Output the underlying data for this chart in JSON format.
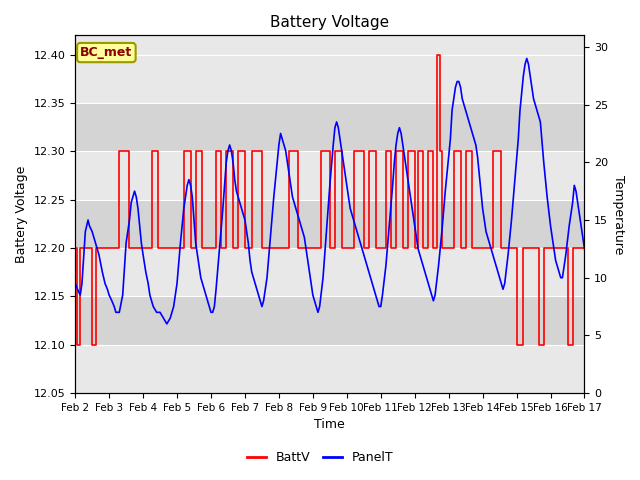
{
  "title": "Battery Voltage",
  "xlabel": "Time",
  "ylabel_left": "Battery Voltage",
  "ylabel_right": "Temperature",
  "ylim_left": [
    12.05,
    12.42
  ],
  "ylim_right": [
    0,
    31.0
  ],
  "yticks_left": [
    12.05,
    12.1,
    12.15,
    12.2,
    12.25,
    12.3,
    12.35,
    12.4
  ],
  "yticks_right": [
    0,
    5,
    10,
    15,
    20,
    25,
    30
  ],
  "xtick_labels": [
    "Feb 2",
    "Feb 3",
    "Feb 4",
    "Feb 5",
    "Feb 6",
    "Feb 7",
    "Feb 8",
    "Feb 9",
    "Feb 10",
    "Feb 11",
    "Feb 12",
    "Feb 13",
    "Feb 14",
    "Feb 15",
    "Feb 16",
    "Feb 17"
  ],
  "background_color": "#ffffff",
  "plot_bg_color": "#e8e8e8",
  "shade_dark_color": "#d0d0d0",
  "grid_color": "#ffffff",
  "annotation_text": "BC_met",
  "annotation_bg": "#ffff99",
  "annotation_border": "#999900",
  "legend_labels": [
    "BattV",
    "PanelT"
  ],
  "battv_color": "#ff0000",
  "panelt_color": "#0000ff",
  "battv_data": [
    [
      0.0,
      12.2
    ],
    [
      0.05,
      12.2
    ],
    [
      0.05,
      12.1
    ],
    [
      0.15,
      12.1
    ],
    [
      0.15,
      12.2
    ],
    [
      0.5,
      12.2
    ],
    [
      0.5,
      12.1
    ],
    [
      0.6,
      12.1
    ],
    [
      0.6,
      12.2
    ],
    [
      1.0,
      12.2
    ],
    [
      1.3,
      12.2
    ],
    [
      1.3,
      12.3
    ],
    [
      1.6,
      12.3
    ],
    [
      1.6,
      12.2
    ],
    [
      2.0,
      12.2
    ],
    [
      2.25,
      12.2
    ],
    [
      2.25,
      12.3
    ],
    [
      2.45,
      12.3
    ],
    [
      2.45,
      12.2
    ],
    [
      3.0,
      12.2
    ],
    [
      3.2,
      12.2
    ],
    [
      3.2,
      12.3
    ],
    [
      3.4,
      12.3
    ],
    [
      3.4,
      12.2
    ],
    [
      3.55,
      12.2
    ],
    [
      3.55,
      12.3
    ],
    [
      3.75,
      12.3
    ],
    [
      3.75,
      12.2
    ],
    [
      4.0,
      12.2
    ],
    [
      4.15,
      12.2
    ],
    [
      4.15,
      12.3
    ],
    [
      4.3,
      12.3
    ],
    [
      4.3,
      12.2
    ],
    [
      4.45,
      12.2
    ],
    [
      4.45,
      12.3
    ],
    [
      4.65,
      12.3
    ],
    [
      4.65,
      12.2
    ],
    [
      4.8,
      12.2
    ],
    [
      4.8,
      12.3
    ],
    [
      5.0,
      12.3
    ],
    [
      5.0,
      12.2
    ],
    [
      5.0,
      12.2
    ],
    [
      5.2,
      12.2
    ],
    [
      5.2,
      12.3
    ],
    [
      5.5,
      12.3
    ],
    [
      5.5,
      12.2
    ],
    [
      6.0,
      12.2
    ],
    [
      6.3,
      12.2
    ],
    [
      6.3,
      12.3
    ],
    [
      6.55,
      12.3
    ],
    [
      6.55,
      12.2
    ],
    [
      7.0,
      12.2
    ],
    [
      7.25,
      12.2
    ],
    [
      7.25,
      12.3
    ],
    [
      7.5,
      12.3
    ],
    [
      7.5,
      12.2
    ],
    [
      7.65,
      12.2
    ],
    [
      7.65,
      12.3
    ],
    [
      7.85,
      12.3
    ],
    [
      7.85,
      12.2
    ],
    [
      8.0,
      12.2
    ],
    [
      8.2,
      12.2
    ],
    [
      8.2,
      12.3
    ],
    [
      8.5,
      12.3
    ],
    [
      8.5,
      12.2
    ],
    [
      8.65,
      12.2
    ],
    [
      8.65,
      12.3
    ],
    [
      8.85,
      12.3
    ],
    [
      8.85,
      12.2
    ],
    [
      9.0,
      12.2
    ],
    [
      9.15,
      12.2
    ],
    [
      9.15,
      12.3
    ],
    [
      9.3,
      12.3
    ],
    [
      9.3,
      12.2
    ],
    [
      9.45,
      12.2
    ],
    [
      9.45,
      12.3
    ],
    [
      9.65,
      12.3
    ],
    [
      9.65,
      12.2
    ],
    [
      9.8,
      12.2
    ],
    [
      9.8,
      12.3
    ],
    [
      10.0,
      12.3
    ],
    [
      10.0,
      12.2
    ],
    [
      10.0,
      12.2
    ],
    [
      10.1,
      12.2
    ],
    [
      10.1,
      12.3
    ],
    [
      10.25,
      12.3
    ],
    [
      10.25,
      12.2
    ],
    [
      10.4,
      12.2
    ],
    [
      10.4,
      12.3
    ],
    [
      10.55,
      12.3
    ],
    [
      10.55,
      12.2
    ],
    [
      10.65,
      12.2
    ],
    [
      10.65,
      12.4
    ],
    [
      10.75,
      12.4
    ],
    [
      10.75,
      12.3
    ],
    [
      10.8,
      12.3
    ],
    [
      10.8,
      12.2
    ],
    [
      11.0,
      12.2
    ],
    [
      11.15,
      12.2
    ],
    [
      11.15,
      12.3
    ],
    [
      11.35,
      12.3
    ],
    [
      11.35,
      12.2
    ],
    [
      11.5,
      12.2
    ],
    [
      11.5,
      12.3
    ],
    [
      11.7,
      12.3
    ],
    [
      11.7,
      12.2
    ],
    [
      12.0,
      12.2
    ],
    [
      12.3,
      12.2
    ],
    [
      12.3,
      12.3
    ],
    [
      12.55,
      12.3
    ],
    [
      12.55,
      12.2
    ],
    [
      13.0,
      12.2
    ],
    [
      13.0,
      12.1
    ],
    [
      13.2,
      12.1
    ],
    [
      13.2,
      12.2
    ],
    [
      13.65,
      12.2
    ],
    [
      13.65,
      12.1
    ],
    [
      13.8,
      12.1
    ],
    [
      13.8,
      12.2
    ],
    [
      14.0,
      12.2
    ],
    [
      14.5,
      12.2
    ],
    [
      14.5,
      12.1
    ],
    [
      14.65,
      12.1
    ],
    [
      14.65,
      12.2
    ],
    [
      15.0,
      12.2
    ]
  ],
  "panelt_data": [
    [
      0.0,
      9.5
    ],
    [
      0.07,
      9.0
    ],
    [
      0.15,
      8.5
    ],
    [
      0.2,
      9.5
    ],
    [
      0.3,
      14.0
    ],
    [
      0.38,
      15.0
    ],
    [
      0.42,
      14.5
    ],
    [
      0.5,
      14.0
    ],
    [
      0.6,
      13.0
    ],
    [
      0.7,
      12.0
    ],
    [
      0.8,
      10.5
    ],
    [
      0.88,
      9.5
    ],
    [
      0.95,
      9.0
    ],
    [
      1.0,
      8.5
    ],
    [
      1.08,
      8.0
    ],
    [
      1.15,
      7.5
    ],
    [
      1.2,
      7.0
    ],
    [
      1.3,
      7.0
    ],
    [
      1.4,
      8.5
    ],
    [
      1.5,
      13.0
    ],
    [
      1.6,
      15.0
    ],
    [
      1.65,
      16.5
    ],
    [
      1.7,
      17.0
    ],
    [
      1.75,
      17.5
    ],
    [
      1.8,
      17.0
    ],
    [
      1.85,
      16.0
    ],
    [
      1.9,
      14.5
    ],
    [
      1.95,
      13.0
    ],
    [
      2.0,
      12.0
    ],
    [
      2.08,
      10.5
    ],
    [
      2.15,
      9.5
    ],
    [
      2.2,
      8.5
    ],
    [
      2.3,
      7.5
    ],
    [
      2.4,
      7.0
    ],
    [
      2.5,
      7.0
    ],
    [
      2.6,
      6.5
    ],
    [
      2.7,
      6.0
    ],
    [
      2.8,
      6.5
    ],
    [
      2.9,
      7.5
    ],
    [
      3.0,
      9.5
    ],
    [
      3.1,
      13.0
    ],
    [
      3.2,
      16.0
    ],
    [
      3.3,
      18.0
    ],
    [
      3.35,
      18.5
    ],
    [
      3.4,
      18.0
    ],
    [
      3.45,
      17.0
    ],
    [
      3.5,
      15.0
    ],
    [
      3.55,
      13.0
    ],
    [
      3.6,
      12.0
    ],
    [
      3.7,
      10.0
    ],
    [
      3.75,
      9.5
    ],
    [
      3.8,
      9.0
    ],
    [
      3.85,
      8.5
    ],
    [
      3.9,
      8.0
    ],
    [
      3.95,
      7.5
    ],
    [
      4.0,
      7.0
    ],
    [
      4.05,
      7.0
    ],
    [
      4.1,
      7.5
    ],
    [
      4.15,
      9.0
    ],
    [
      4.25,
      12.5
    ],
    [
      4.35,
      16.0
    ],
    [
      4.45,
      20.0
    ],
    [
      4.5,
      21.0
    ],
    [
      4.55,
      21.5
    ],
    [
      4.6,
      21.0
    ],
    [
      4.65,
      20.0
    ],
    [
      4.7,
      18.5
    ],
    [
      4.75,
      17.5
    ],
    [
      4.8,
      17.0
    ],
    [
      4.85,
      16.5
    ],
    [
      4.9,
      16.0
    ],
    [
      4.95,
      15.5
    ],
    [
      5.0,
      15.0
    ],
    [
      5.05,
      14.0
    ],
    [
      5.1,
      13.0
    ],
    [
      5.15,
      11.5
    ],
    [
      5.2,
      10.5
    ],
    [
      5.25,
      10.0
    ],
    [
      5.3,
      9.5
    ],
    [
      5.35,
      9.0
    ],
    [
      5.4,
      8.5
    ],
    [
      5.45,
      8.0
    ],
    [
      5.5,
      7.5
    ],
    [
      5.55,
      8.0
    ],
    [
      5.65,
      10.0
    ],
    [
      5.75,
      13.5
    ],
    [
      5.85,
      17.0
    ],
    [
      5.95,
      20.0
    ],
    [
      6.0,
      21.5
    ],
    [
      6.05,
      22.5
    ],
    [
      6.1,
      22.0
    ],
    [
      6.15,
      21.5
    ],
    [
      6.2,
      21.0
    ],
    [
      6.25,
      20.0
    ],
    [
      6.3,
      19.0
    ],
    [
      6.35,
      18.0
    ],
    [
      6.4,
      17.0
    ],
    [
      6.45,
      16.5
    ],
    [
      6.5,
      16.0
    ],
    [
      6.55,
      15.5
    ],
    [
      6.6,
      15.0
    ],
    [
      6.65,
      14.5
    ],
    [
      6.7,
      14.0
    ],
    [
      6.75,
      13.5
    ],
    [
      6.8,
      12.5
    ],
    [
      6.85,
      11.5
    ],
    [
      6.9,
      10.5
    ],
    [
      6.95,
      9.5
    ],
    [
      7.0,
      8.5
    ],
    [
      7.05,
      8.0
    ],
    [
      7.1,
      7.5
    ],
    [
      7.15,
      7.0
    ],
    [
      7.2,
      7.5
    ],
    [
      7.3,
      10.0
    ],
    [
      7.4,
      14.0
    ],
    [
      7.5,
      18.0
    ],
    [
      7.6,
      21.5
    ],
    [
      7.65,
      23.0
    ],
    [
      7.7,
      23.5
    ],
    [
      7.75,
      23.0
    ],
    [
      7.8,
      22.0
    ],
    [
      7.85,
      21.0
    ],
    [
      7.9,
      20.0
    ],
    [
      7.95,
      19.0
    ],
    [
      8.0,
      18.0
    ],
    [
      8.05,
      17.0
    ],
    [
      8.1,
      16.0
    ],
    [
      8.15,
      15.5
    ],
    [
      8.2,
      15.0
    ],
    [
      8.25,
      14.5
    ],
    [
      8.3,
      14.0
    ],
    [
      8.35,
      13.5
    ],
    [
      8.4,
      13.0
    ],
    [
      8.45,
      12.5
    ],
    [
      8.5,
      12.0
    ],
    [
      8.55,
      11.5
    ],
    [
      8.6,
      11.0
    ],
    [
      8.65,
      10.5
    ],
    [
      8.7,
      10.0
    ],
    [
      8.75,
      9.5
    ],
    [
      8.8,
      9.0
    ],
    [
      8.85,
      8.5
    ],
    [
      8.9,
      8.0
    ],
    [
      8.95,
      7.5
    ],
    [
      9.0,
      7.5
    ],
    [
      9.05,
      8.5
    ],
    [
      9.15,
      11.0
    ],
    [
      9.25,
      14.5
    ],
    [
      9.35,
      18.0
    ],
    [
      9.4,
      20.0
    ],
    [
      9.45,
      21.5
    ],
    [
      9.5,
      22.5
    ],
    [
      9.55,
      23.0
    ],
    [
      9.6,
      22.5
    ],
    [
      9.65,
      21.5
    ],
    [
      9.7,
      20.5
    ],
    [
      9.75,
      19.5
    ],
    [
      9.8,
      18.5
    ],
    [
      9.85,
      17.5
    ],
    [
      9.9,
      16.5
    ],
    [
      9.95,
      15.5
    ],
    [
      10.0,
      14.5
    ],
    [
      10.05,
      13.5
    ],
    [
      10.1,
      12.5
    ],
    [
      10.15,
      12.0
    ],
    [
      10.2,
      11.5
    ],
    [
      10.25,
      11.0
    ],
    [
      10.3,
      10.5
    ],
    [
      10.35,
      10.0
    ],
    [
      10.4,
      9.5
    ],
    [
      10.45,
      9.0
    ],
    [
      10.5,
      8.5
    ],
    [
      10.55,
      8.0
    ],
    [
      10.6,
      8.5
    ],
    [
      10.7,
      11.0
    ],
    [
      10.8,
      14.0
    ],
    [
      10.9,
      17.5
    ],
    [
      11.0,
      20.5
    ],
    [
      11.05,
      22.0
    ],
    [
      11.1,
      24.5
    ],
    [
      11.15,
      25.5
    ],
    [
      11.2,
      26.5
    ],
    [
      11.25,
      27.0
    ],
    [
      11.3,
      27.0
    ],
    [
      11.35,
      26.5
    ],
    [
      11.4,
      25.5
    ],
    [
      11.45,
      25.0
    ],
    [
      11.5,
      24.5
    ],
    [
      11.55,
      24.0
    ],
    [
      11.6,
      23.5
    ],
    [
      11.65,
      23.0
    ],
    [
      11.7,
      22.5
    ],
    [
      11.75,
      22.0
    ],
    [
      11.8,
      21.5
    ],
    [
      11.85,
      20.5
    ],
    [
      11.9,
      19.0
    ],
    [
      11.95,
      17.5
    ],
    [
      12.0,
      16.0
    ],
    [
      12.05,
      15.0
    ],
    [
      12.1,
      14.0
    ],
    [
      12.15,
      13.5
    ],
    [
      12.2,
      13.0
    ],
    [
      12.25,
      12.5
    ],
    [
      12.3,
      12.0
    ],
    [
      12.35,
      11.5
    ],
    [
      12.4,
      11.0
    ],
    [
      12.45,
      10.5
    ],
    [
      12.5,
      10.0
    ],
    [
      12.55,
      9.5
    ],
    [
      12.6,
      9.0
    ],
    [
      12.65,
      9.5
    ],
    [
      12.75,
      12.0
    ],
    [
      12.85,
      15.0
    ],
    [
      12.95,
      18.5
    ],
    [
      13.05,
      22.0
    ],
    [
      13.1,
      24.5
    ],
    [
      13.15,
      26.0
    ],
    [
      13.2,
      27.5
    ],
    [
      13.25,
      28.5
    ],
    [
      13.3,
      29.0
    ],
    [
      13.35,
      28.5
    ],
    [
      13.4,
      27.5
    ],
    [
      13.45,
      26.5
    ],
    [
      13.5,
      25.5
    ],
    [
      13.55,
      25.0
    ],
    [
      13.6,
      24.5
    ],
    [
      13.65,
      24.0
    ],
    [
      13.7,
      23.5
    ],
    [
      13.8,
      20.0
    ],
    [
      13.9,
      17.0
    ],
    [
      14.0,
      14.5
    ],
    [
      14.1,
      12.5
    ],
    [
      14.15,
      11.5
    ],
    [
      14.2,
      11.0
    ],
    [
      14.25,
      10.5
    ],
    [
      14.3,
      10.0
    ],
    [
      14.35,
      10.0
    ],
    [
      14.45,
      12.0
    ],
    [
      14.55,
      14.5
    ],
    [
      14.65,
      16.5
    ],
    [
      14.7,
      18.0
    ],
    [
      14.75,
      17.5
    ],
    [
      14.8,
      16.5
    ],
    [
      14.85,
      15.5
    ],
    [
      14.9,
      14.5
    ],
    [
      14.95,
      13.5
    ],
    [
      15.0,
      12.5
    ],
    [
      15.05,
      11.5
    ],
    [
      15.1,
      10.5
    ],
    [
      15.15,
      10.0
    ],
    [
      15.2,
      9.5
    ],
    [
      15.25,
      9.0
    ],
    [
      15.3,
      8.5
    ],
    [
      15.35,
      8.0
    ],
    [
      15.4,
      8.0
    ],
    [
      15.45,
      9.0
    ],
    [
      15.55,
      11.5
    ],
    [
      15.65,
      14.0
    ],
    [
      15.75,
      16.5
    ],
    [
      15.8,
      17.5
    ],
    [
      15.85,
      18.0
    ],
    [
      15.9,
      17.0
    ],
    [
      15.95,
      16.0
    ],
    [
      15.99,
      15.0
    ]
  ]
}
